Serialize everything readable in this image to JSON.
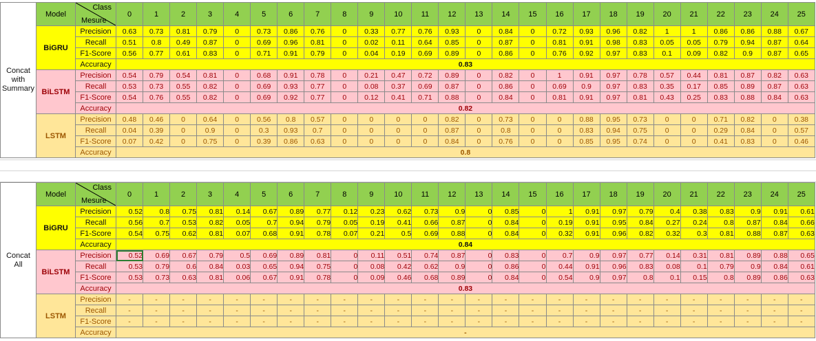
{
  "header": {
    "model_label": "Model",
    "class_label": "Class",
    "measure_label": "Mesure"
  },
  "classes": [
    "0",
    "1",
    "2",
    "3",
    "4",
    "5",
    "6",
    "7",
    "8",
    "9",
    "10",
    "11",
    "12",
    "13",
    "14",
    "15",
    "16",
    "17",
    "18",
    "19",
    "20",
    "21",
    "22",
    "23",
    "24",
    "25"
  ],
  "metrics": [
    "Precision",
    "Recall",
    "F1-Score"
  ],
  "accuracy_label": "Accuracy",
  "sections": [
    {
      "title_lines": [
        "Concat",
        "with",
        "Summary"
      ],
      "models": [
        {
          "name": "BiGRU",
          "color": "#ffff00",
          "rows": [
            [
              "0.63",
              "0.73",
              "0.81",
              "0.79",
              "0",
              "0.73",
              "0.86",
              "0.76",
              "0",
              "0.33",
              "0.77",
              "0.76",
              "0.93",
              "0",
              "0.84",
              "0",
              "0.72",
              "0.93",
              "0.96",
              "0.82",
              "1",
              "1",
              "0.86",
              "0.86",
              "0.88",
              "0.67"
            ],
            [
              "0.51",
              "0.8",
              "0.49",
              "0.87",
              "0",
              "0.69",
              "0.96",
              "0.81",
              "0",
              "0.02",
              "0.11",
              "0.64",
              "0.85",
              "0",
              "0.87",
              "0",
              "0.81",
              "0.91",
              "0.98",
              "0.83",
              "0.05",
              "0.05",
              "0.79",
              "0.94",
              "0.87",
              "0.64"
            ],
            [
              "0.56",
              "0.77",
              "0.61",
              "0.83",
              "0",
              "0.71",
              "0.91",
              "0.79",
              "0",
              "0.04",
              "0.19",
              "0.69",
              "0.89",
              "0",
              "0.86",
              "0",
              "0.76",
              "0.92",
              "0.97",
              "0.83",
              "0.1",
              "0.09",
              "0.82",
              "0.9",
              "0.87",
              "0.65"
            ]
          ],
          "accuracy": "0.83"
        },
        {
          "name": "BiLSTM",
          "color": "#ffc7ce",
          "rows": [
            [
              "0.54",
              "0.79",
              "0.54",
              "0.81",
              "0",
              "0.68",
              "0.91",
              "0.78",
              "0",
              "0.21",
              "0.47",
              "0.72",
              "0.89",
              "0",
              "0.82",
              "0",
              "1",
              "0.91",
              "0.97",
              "0.78",
              "0.57",
              "0.44",
              "0.81",
              "0.87",
              "0.82",
              "0.63"
            ],
            [
              "0.53",
              "0.73",
              "0.55",
              "0.82",
              "0",
              "0.69",
              "0.93",
              "0.77",
              "0",
              "0.08",
              "0.37",
              "0.69",
              "0.87",
              "0",
              "0.86",
              "0",
              "0.69",
              "0.9",
              "0.97",
              "0.83",
              "0.35",
              "0.17",
              "0.85",
              "0.89",
              "0.87",
              "0.63"
            ],
            [
              "0.54",
              "0.76",
              "0.55",
              "0.82",
              "0",
              "0.69",
              "0.92",
              "0.77",
              "0",
              "0.12",
              "0.41",
              "0.71",
              "0.88",
              "0",
              "0.84",
              "0",
              "0.81",
              "0.91",
              "0.97",
              "0.81",
              "0.43",
              "0.25",
              "0.83",
              "0.88",
              "0.84",
              "0.63"
            ]
          ],
          "accuracy": "0.82"
        },
        {
          "name": "LSTM",
          "color": "#ffe699",
          "rows": [
            [
              "0.48",
              "0.46",
              "0",
              "0.64",
              "0",
              "0.56",
              "0.8",
              "0.57",
              "0",
              "0",
              "0",
              "0",
              "0.82",
              "0",
              "0.73",
              "0",
              "0",
              "0.88",
              "0.95",
              "0.73",
              "0",
              "0",
              "0.71",
              "0.82",
              "0",
              "0.38"
            ],
            [
              "0.04",
              "0.39",
              "0",
              "0.9",
              "0",
              "0.3",
              "0.93",
              "0.7",
              "0",
              "0",
              "0",
              "0",
              "0.87",
              "0",
              "0.8",
              "0",
              "0",
              "0.83",
              "0.94",
              "0.75",
              "0",
              "0",
              "0.29",
              "0.84",
              "0",
              "0.57"
            ],
            [
              "0.07",
              "0.42",
              "0",
              "0.75",
              "0",
              "0.39",
              "0.86",
              "0.63",
              "0",
              "0",
              "0",
              "0",
              "0.84",
              "0",
              "0.76",
              "0",
              "0",
              "0.85",
              "0.95",
              "0.74",
              "0",
              "0",
              "0.41",
              "0.83",
              "0",
              "0.46"
            ]
          ],
          "accuracy": "0.8"
        }
      ]
    },
    {
      "title_lines": [
        "Concat",
        "All"
      ],
      "models": [
        {
          "name": "BiGRU",
          "color": "#ffff00",
          "rows": [
            [
              "0.52",
              "0.8",
              "0.75",
              "0.81",
              "0.14",
              "0.67",
              "0.89",
              "0.77",
              "0.12",
              "0.23",
              "0.62",
              "0.73",
              "0.9",
              "0",
              "0.85",
              "0",
              "1",
              "0.91",
              "0.97",
              "0.79",
              "0.4",
              "0.38",
              "0.83",
              "0.9",
              "0.91",
              "0.61"
            ],
            [
              "0.56",
              "0.7",
              "0.53",
              "0.82",
              "0.05",
              "0.7",
              "0.94",
              "0.79",
              "0.05",
              "0.19",
              "0.41",
              "0.66",
              "0.87",
              "0",
              "0.84",
              "0",
              "0.19",
              "0.91",
              "0.95",
              "0.84",
              "0.27",
              "0.24",
              "0.8",
              "0.87",
              "0.84",
              "0.66"
            ],
            [
              "0.54",
              "0.75",
              "0.62",
              "0.81",
              "0.07",
              "0.68",
              "0.91",
              "0.78",
              "0.07",
              "0.21",
              "0.5",
              "0.69",
              "0.88",
              "0",
              "0.84",
              "0",
              "0.32",
              "0.91",
              "0.96",
              "0.82",
              "0.32",
              "0.3",
              "0.81",
              "0.88",
              "0.87",
              "0.63"
            ]
          ],
          "accuracy": "0.84"
        },
        {
          "name": "BiLSTM",
          "color": "#ffc7ce",
          "rows": [
            [
              "0.52",
              "0.69",
              "0.67",
              "0.79",
              "0.5",
              "0.69",
              "0.89",
              "0.81",
              "0",
              "0.11",
              "0.51",
              "0.74",
              "0.87",
              "0",
              "0.83",
              "0",
              "0.7",
              "0.9",
              "0.97",
              "0.77",
              "0.14",
              "0.31",
              "0.81",
              "0.89",
              "0.88",
              "0.65"
            ],
            [
              "0.53",
              "0.79",
              "0.6",
              "0.84",
              "0.03",
              "0.65",
              "0.94",
              "0.75",
              "0",
              "0.08",
              "0.42",
              "0.62",
              "0.9",
              "0",
              "0.86",
              "0",
              "0.44",
              "0.91",
              "0.96",
              "0.83",
              "0.08",
              "0.1",
              "0.79",
              "0.9",
              "0.84",
              "0.61"
            ],
            [
              "0.53",
              "0.73",
              "0.63",
              "0.81",
              "0.06",
              "0.67",
              "0.91",
              "0.78",
              "0",
              "0.09",
              "0.46",
              "0.68",
              "0.89",
              "0",
              "0.84",
              "0",
              "0.54",
              "0.9",
              "0.97",
              "0.8",
              "0.1",
              "0.15",
              "0.8",
              "0.89",
              "0.86",
              "0.63"
            ]
          ],
          "accuracy": "0.83"
        },
        {
          "name": "LSTM",
          "color": "#ffe699",
          "rows": [
            [
              "-",
              "-",
              "-",
              "-",
              "-",
              "-",
              "-",
              "-",
              "-",
              "-",
              "-",
              "-",
              "-",
              "-",
              "-",
              "-",
              "-",
              "-",
              "-",
              "-",
              "-",
              "-",
              "-",
              "-",
              "-",
              "-"
            ],
            [
              "-",
              "-",
              "-",
              "-",
              "-",
              "-",
              "-",
              "-",
              "-",
              "-",
              "-",
              "-",
              "-",
              "-",
              "-",
              "-",
              "-",
              "-",
              "-",
              "-",
              "-",
              "-",
              "-",
              "-",
              "-",
              "-"
            ],
            [
              "-",
              "-",
              "-",
              "-",
              "-",
              "-",
              "-",
              "-",
              "-",
              "-",
              "-",
              "-",
              "-",
              "-",
              "-",
              "-",
              "-",
              "-",
              "-",
              "-",
              "-",
              "-",
              "-",
              "-",
              "-",
              "-"
            ]
          ],
          "accuracy": "-"
        }
      ]
    }
  ]
}
